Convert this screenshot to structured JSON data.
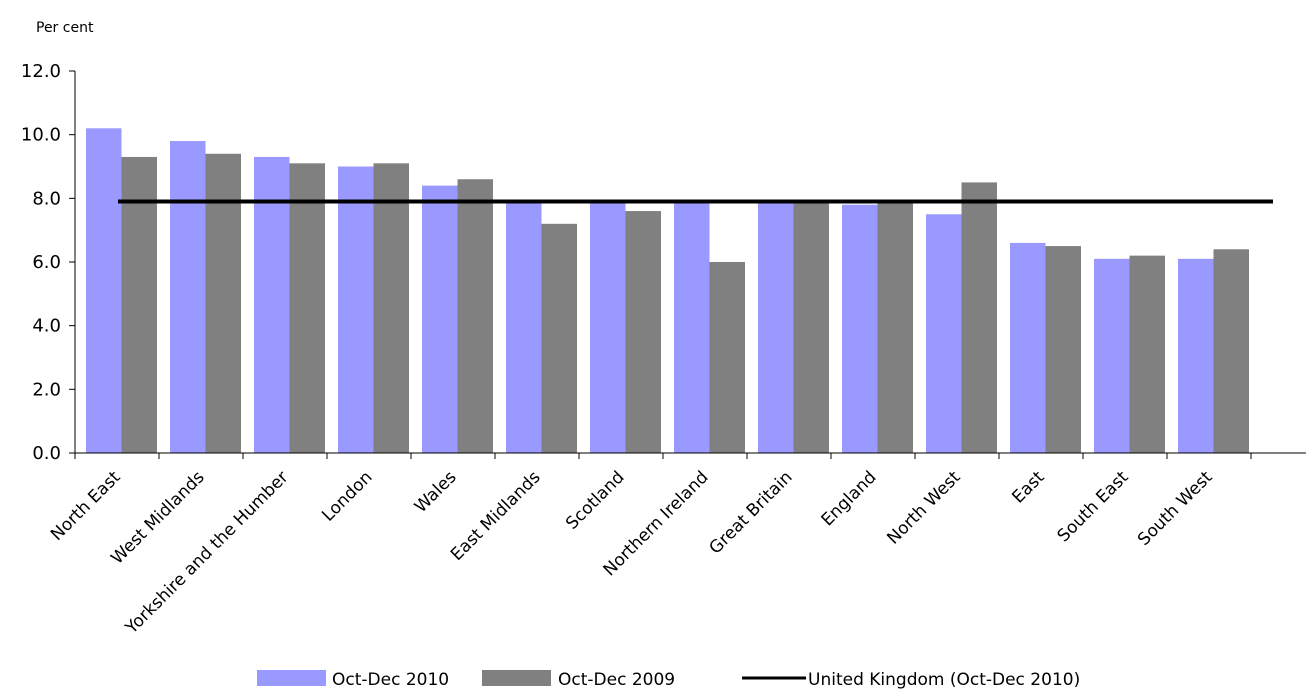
{
  "chart_data": {
    "type": "bar",
    "ylabel": "Per cent",
    "ylim": [
      0,
      12
    ],
    "yticks": [
      0,
      2,
      4,
      6,
      8,
      10,
      12
    ],
    "ytick_labels": [
      "0.0",
      "2.0",
      "4.0",
      "6.0",
      "8.0",
      "10.0",
      "12.0"
    ],
    "categories": [
      "North East",
      "West Midlands",
      "Yorkshire and the Humber",
      "London",
      "Wales",
      "East Midlands",
      "Scotland",
      "Northern Ireland",
      "Great Britain",
      "England",
      "North West",
      "East",
      "South East",
      "South West"
    ],
    "series": [
      {
        "name": "Oct-Dec 2010",
        "color": "#9999ff",
        "values": [
          10.2,
          9.8,
          9.3,
          9.0,
          8.4,
          7.9,
          7.9,
          7.9,
          7.9,
          7.8,
          7.5,
          6.6,
          6.1,
          6.1
        ]
      },
      {
        "name": "Oct-Dec 2009",
        "color": "#808080",
        "values": [
          9.3,
          9.4,
          9.1,
          9.1,
          8.6,
          7.2,
          7.6,
          6.0,
          7.9,
          7.9,
          8.5,
          6.5,
          6.2,
          6.4
        ]
      }
    ],
    "reference_line": {
      "name": "United Kingdom (Oct-Dec 2010)",
      "value": 7.9,
      "color": "#000000"
    },
    "legend_position": "bottom",
    "grid": false
  }
}
